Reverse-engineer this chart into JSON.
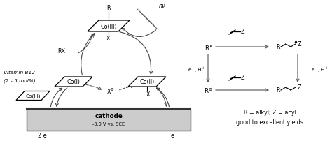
{
  "bg_color": "#ffffff",
  "cathode_fill": "#cccccc",
  "cathode_stroke": "#444444",
  "box_fill": "#ffffff",
  "box_stroke": "#000000",
  "text_color": "#000000",
  "arrow_color": "#444444",
  "fig_width": 4.74,
  "fig_height": 2.03,
  "dpi": 100,
  "cathode_label": "cathode",
  "cathode_sublabel": "-0.9 V vs. SCE",
  "cathode_left": "2 e⁻",
  "cathode_right": "e⁻",
  "vitamin_line1": "Vitamin B12",
  "vitamin_line2": "(2 - 5 mol%)",
  "co3_top": "Co(III)",
  "co1_label": "Co(I)",
  "co2_label": "Co(II)",
  "co3_label": "Co(III)",
  "rx_label": "RX",
  "x_top": "X",
  "x_neg": "X",
  "r_top": "R",
  "hv_label": "hν",
  "note_line1": "R = alkyl; Z = acyl",
  "note_line2": "good to excellent yields"
}
